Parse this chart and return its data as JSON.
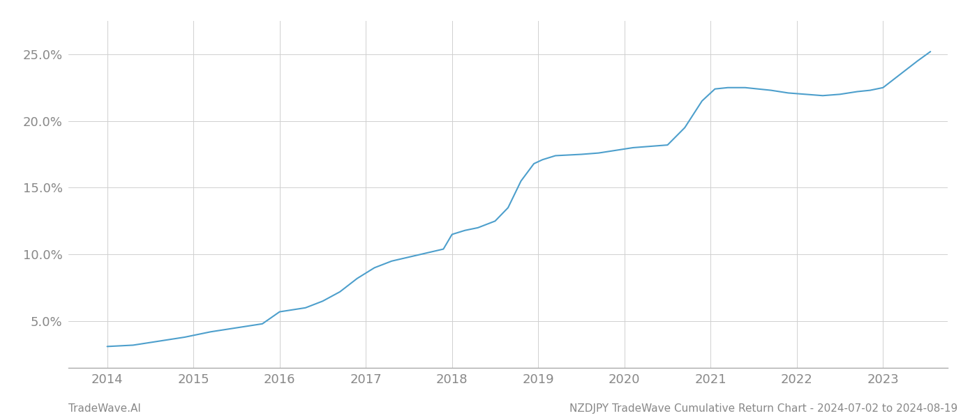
{
  "x_years": [
    2014,
    2015,
    2016,
    2017,
    2018,
    2019,
    2020,
    2021,
    2022,
    2023
  ],
  "x_values": [
    2014.0,
    2014.3,
    2014.6,
    2014.9,
    2015.2,
    2015.5,
    2015.8,
    2016.0,
    2016.15,
    2016.3,
    2016.5,
    2016.7,
    2016.9,
    2017.1,
    2017.3,
    2017.5,
    2017.7,
    2017.9,
    2018.0,
    2018.15,
    2018.3,
    2018.5,
    2018.65,
    2018.8,
    2018.95,
    2019.05,
    2019.2,
    2019.5,
    2019.7,
    2019.9,
    2020.1,
    2020.3,
    2020.5,
    2020.7,
    2020.9,
    2021.05,
    2021.2,
    2021.4,
    2021.55,
    2021.7,
    2021.9,
    2022.1,
    2022.3,
    2022.5,
    2022.7,
    2022.85,
    2023.0,
    2023.2,
    2023.4,
    2023.55
  ],
  "y_values": [
    3.1,
    3.2,
    3.5,
    3.8,
    4.2,
    4.5,
    4.8,
    5.7,
    5.85,
    6.0,
    6.5,
    7.2,
    8.2,
    9.0,
    9.5,
    9.8,
    10.1,
    10.4,
    11.5,
    11.8,
    12.0,
    12.5,
    13.5,
    15.5,
    16.8,
    17.1,
    17.4,
    17.5,
    17.6,
    17.8,
    18.0,
    18.1,
    18.2,
    19.5,
    21.5,
    22.4,
    22.5,
    22.5,
    22.4,
    22.3,
    22.1,
    22.0,
    21.9,
    22.0,
    22.2,
    22.3,
    22.5,
    23.5,
    24.5,
    25.2
  ],
  "line_color": "#4d9fcc",
  "line_width": 1.5,
  "background_color": "#ffffff",
  "grid_color": "#d0d0d0",
  "tick_color": "#888888",
  "ytick_labels": [
    "5.0%",
    "10.0%",
    "15.0%",
    "20.0%",
    "25.0%"
  ],
  "ytick_values": [
    5.0,
    10.0,
    15.0,
    20.0,
    25.0
  ],
  "ylim": [
    1.5,
    27.5
  ],
  "xlim": [
    2013.55,
    2023.75
  ],
  "footer_left": "TradeWave.AI",
  "footer_right": "NZDJPY TradeWave Cumulative Return Chart - 2024-07-02 to 2024-08-19",
  "footer_color": "#888888",
  "footer_fontsize": 11
}
